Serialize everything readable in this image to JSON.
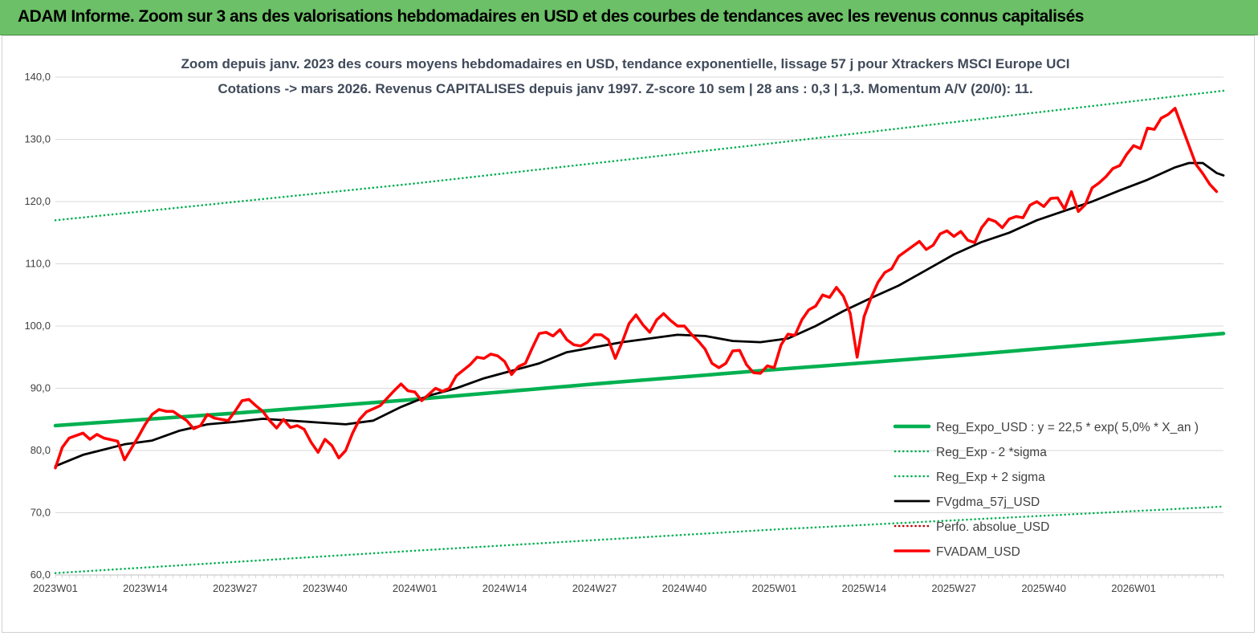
{
  "banner": {
    "title": "ADAM Informe. Zoom sur 3 ans des valorisations hebdomadaires en USD et des courbes de tendances avec les revenus connus capitalisés"
  },
  "colors": {
    "banner": "#6cc067",
    "reg_expo": "#00b050",
    "band": "#00b050",
    "fvgdma": "#000000",
    "perfo": "#c00000",
    "fvadam": "#ff0000"
  },
  "chart_data": {
    "type": "line",
    "title_line1": "Zoom depuis janv. 2023 des cours moyens hebdomadaires en USD, tendance exponentielle, lissage 57 j pour Xtrackers MSCI Europe UCI",
    "title_line2": "Cotations -> mars 2026. Revenus CAPITALISES depuis janv 1997. Z-score 10 sem | 28 ans : 0,3 | 1,3. Momentum A/V (20/0): 11.",
    "ylim": [
      60,
      140
    ],
    "y_ticks": [
      "60,0",
      "70,0",
      "80,0",
      "90,0",
      "100,0",
      "110,0",
      "120,0",
      "130,0",
      "140,0"
    ],
    "x_ticks": [
      "2023W01",
      "2023W14",
      "2023W27",
      "2023W40",
      "2024W01",
      "2024W14",
      "2024W27",
      "2024W40",
      "2025W01",
      "2025W14",
      "2025W27",
      "2025W40",
      "2026W01"
    ],
    "x_tick_index": [
      0,
      13,
      26,
      39,
      52,
      65,
      78,
      91,
      104,
      117,
      130,
      143,
      156
    ],
    "x_max_index": 169,
    "grid": "horizontal",
    "legend_position": "bottom-right",
    "series": [
      {
        "name": "Reg_Expo_USD : y = 22,5 * exp( 5,0% *  X_an )",
        "style": "solid-thick",
        "color": "#00b050",
        "anchors": [
          [
            0,
            84.0
          ],
          [
            26,
            86.0
          ],
          [
            52,
            88.2
          ],
          [
            78,
            90.7
          ],
          [
            104,
            93.0
          ],
          [
            130,
            95.2
          ],
          [
            156,
            97.6
          ],
          [
            169,
            98.8
          ]
        ]
      },
      {
        "name": "Reg_Exp - 2 *sigma",
        "style": "dotted",
        "color": "#00b050",
        "anchors": [
          [
            0,
            60.3
          ],
          [
            52,
            63.9
          ],
          [
            104,
            67.3
          ],
          [
            169,
            71.0
          ]
        ]
      },
      {
        "name": "Reg_Exp + 2 sigma",
        "style": "dotted",
        "color": "#00b050",
        "anchors": [
          [
            0,
            117.0
          ],
          [
            52,
            122.9
          ],
          [
            104,
            129.4
          ],
          [
            169,
            137.8
          ]
        ]
      },
      {
        "name": "FVgdma_57j_USD",
        "style": "solid",
        "color": "#000000",
        "anchors": [
          [
            0,
            77.5
          ],
          [
            4,
            79.3
          ],
          [
            10,
            81.0
          ],
          [
            14,
            81.6
          ],
          [
            18,
            83.2
          ],
          [
            22,
            84.2
          ],
          [
            26,
            84.6
          ],
          [
            30,
            85.1
          ],
          [
            34,
            84.8
          ],
          [
            38,
            84.5
          ],
          [
            42,
            84.2
          ],
          [
            46,
            84.8
          ],
          [
            50,
            87.0
          ],
          [
            54,
            88.8
          ],
          [
            58,
            90.0
          ],
          [
            62,
            91.6
          ],
          [
            66,
            92.8
          ],
          [
            70,
            94.0
          ],
          [
            74,
            95.8
          ],
          [
            78,
            96.6
          ],
          [
            82,
            97.4
          ],
          [
            86,
            98.0
          ],
          [
            90,
            98.6
          ],
          [
            94,
            98.4
          ],
          [
            98,
            97.6
          ],
          [
            102,
            97.4
          ],
          [
            106,
            98.0
          ],
          [
            110,
            100.0
          ],
          [
            114,
            102.4
          ],
          [
            118,
            104.5
          ],
          [
            122,
            106.5
          ],
          [
            126,
            109.0
          ],
          [
            130,
            111.5
          ],
          [
            134,
            113.5
          ],
          [
            138,
            115.0
          ],
          [
            142,
            117.0
          ],
          [
            146,
            118.5
          ],
          [
            150,
            120.0
          ],
          [
            154,
            121.8
          ],
          [
            158,
            123.5
          ],
          [
            162,
            125.5
          ],
          [
            164,
            126.2
          ],
          [
            166,
            126.2
          ],
          [
            168,
            124.6
          ],
          [
            169,
            124.2
          ]
        ]
      },
      {
        "name": "Perfo. absolue_USD",
        "style": "dotted",
        "color": "#c00000",
        "anchors": []
      },
      {
        "name": "FVADAM_USD",
        "style": "solid-thick",
        "color": "#ff0000",
        "anchors": [
          [
            0,
            77.2
          ],
          [
            1,
            80.5
          ],
          [
            2,
            82.0
          ],
          [
            4,
            82.8
          ],
          [
            5,
            81.8
          ],
          [
            6,
            82.6
          ],
          [
            7,
            82.0
          ],
          [
            9,
            81.5
          ],
          [
            10,
            78.5
          ],
          [
            12,
            82.2
          ],
          [
            13,
            84.2
          ],
          [
            14,
            85.8
          ],
          [
            15,
            86.6
          ],
          [
            16,
            86.3
          ],
          [
            17,
            86.3
          ],
          [
            19,
            84.8
          ],
          [
            20,
            83.5
          ],
          [
            21,
            84.0
          ],
          [
            22,
            85.8
          ],
          [
            23,
            85.2
          ],
          [
            25,
            84.8
          ],
          [
            26,
            86.3
          ],
          [
            27,
            88.0
          ],
          [
            28,
            88.2
          ],
          [
            29,
            87.2
          ],
          [
            30,
            86.3
          ],
          [
            31,
            84.8
          ],
          [
            32,
            83.6
          ],
          [
            33,
            85.0
          ],
          [
            34,
            83.7
          ],
          [
            35,
            84.0
          ],
          [
            36,
            83.4
          ],
          [
            37,
            81.3
          ],
          [
            38,
            79.7
          ],
          [
            39,
            81.8
          ],
          [
            40,
            80.8
          ],
          [
            41,
            78.8
          ],
          [
            42,
            80.0
          ],
          [
            43,
            82.8
          ],
          [
            44,
            85.0
          ],
          [
            45,
            86.2
          ],
          [
            47,
            87.2
          ],
          [
            49,
            89.6
          ],
          [
            50,
            90.7
          ],
          [
            51,
            89.6
          ],
          [
            52,
            89.4
          ],
          [
            53,
            88.0
          ],
          [
            54,
            89.0
          ],
          [
            55,
            90.0
          ],
          [
            56,
            89.5
          ],
          [
            57,
            90.0
          ],
          [
            58,
            92.0
          ],
          [
            60,
            93.8
          ],
          [
            61,
            95.0
          ],
          [
            62,
            94.8
          ],
          [
            63,
            95.5
          ],
          [
            64,
            95.2
          ],
          [
            65,
            94.3
          ],
          [
            66,
            92.2
          ],
          [
            67,
            93.5
          ],
          [
            68,
            94.0
          ],
          [
            69,
            96.5
          ],
          [
            70,
            98.8
          ],
          [
            71,
            99.0
          ],
          [
            72,
            98.4
          ],
          [
            73,
            99.4
          ],
          [
            74,
            97.8
          ],
          [
            75,
            97.0
          ],
          [
            76,
            96.8
          ],
          [
            77,
            97.4
          ],
          [
            78,
            98.6
          ],
          [
            79,
            98.6
          ],
          [
            80,
            97.8
          ],
          [
            81,
            94.8
          ],
          [
            82,
            97.4
          ],
          [
            83,
            100.4
          ],
          [
            84,
            101.8
          ],
          [
            85,
            100.2
          ],
          [
            86,
            99.0
          ],
          [
            87,
            101.0
          ],
          [
            88,
            102.0
          ],
          [
            89,
            100.9
          ],
          [
            90,
            100.0
          ],
          [
            91,
            100.0
          ],
          [
            92,
            98.7
          ],
          [
            93,
            97.6
          ],
          [
            94,
            96.3
          ],
          [
            95,
            94.0
          ],
          [
            96,
            93.3
          ],
          [
            97,
            94.0
          ],
          [
            98,
            96.0
          ],
          [
            99,
            96.1
          ],
          [
            100,
            93.8
          ],
          [
            101,
            92.5
          ],
          [
            102,
            92.4
          ],
          [
            103,
            93.6
          ],
          [
            104,
            93.3
          ],
          [
            105,
            97.0
          ],
          [
            106,
            98.7
          ],
          [
            107,
            98.5
          ],
          [
            108,
            101.0
          ],
          [
            109,
            102.6
          ],
          [
            110,
            103.2
          ],
          [
            111,
            105.0
          ],
          [
            112,
            104.6
          ],
          [
            113,
            106.2
          ],
          [
            114,
            104.8
          ],
          [
            115,
            102.0
          ],
          [
            116,
            95.0
          ],
          [
            117,
            101.5
          ],
          [
            118,
            104.5
          ],
          [
            119,
            107.0
          ],
          [
            120,
            108.6
          ],
          [
            121,
            109.2
          ],
          [
            122,
            111.2
          ],
          [
            123,
            112.0
          ],
          [
            125,
            113.6
          ],
          [
            126,
            112.3
          ],
          [
            127,
            113.0
          ],
          [
            128,
            114.8
          ],
          [
            129,
            115.3
          ],
          [
            130,
            114.4
          ],
          [
            131,
            115.2
          ],
          [
            132,
            113.8
          ],
          [
            133,
            113.4
          ],
          [
            134,
            115.8
          ],
          [
            135,
            117.2
          ],
          [
            136,
            116.8
          ],
          [
            137,
            115.8
          ],
          [
            138,
            117.2
          ],
          [
            139,
            117.6
          ],
          [
            140,
            117.4
          ],
          [
            141,
            119.4
          ],
          [
            142,
            120.0
          ],
          [
            143,
            119.2
          ],
          [
            144,
            120.5
          ],
          [
            145,
            120.6
          ],
          [
            146,
            118.8
          ],
          [
            147,
            121.6
          ],
          [
            148,
            118.4
          ],
          [
            149,
            119.5
          ],
          [
            150,
            122.2
          ],
          [
            151,
            123.0
          ],
          [
            152,
            124.0
          ],
          [
            153,
            125.3
          ],
          [
            154,
            125.8
          ],
          [
            155,
            127.6
          ],
          [
            156,
            129.0
          ],
          [
            157,
            128.5
          ],
          [
            158,
            131.8
          ],
          [
            159,
            131.6
          ],
          [
            160,
            133.4
          ],
          [
            161,
            134.0
          ],
          [
            162,
            135.0
          ],
          [
            163,
            132.0
          ],
          [
            164,
            129.0
          ],
          [
            165,
            126.0
          ],
          [
            166,
            124.5
          ],
          [
            167,
            122.8
          ],
          [
            168,
            121.6
          ]
        ]
      }
    ]
  }
}
